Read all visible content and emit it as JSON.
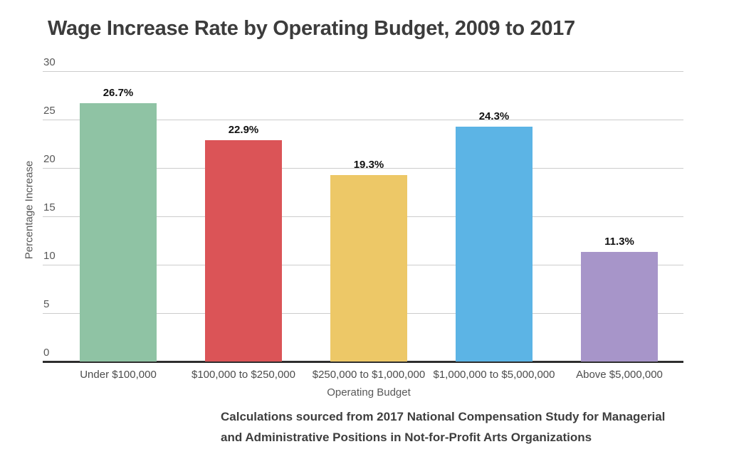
{
  "chart": {
    "title": "Wage Increase Rate by Operating Budget, 2009 to 2017",
    "y_axis": {
      "label": "Percentage Increase"
    },
    "x_axis": {
      "label": "Operating Budget"
    },
    "footer": {
      "line1": "Calculations sourced from 2017 National Compensation Study for Managerial",
      "line2": "and Administrative  Positions in Not-for-Profit Arts Organizations"
    }
  },
  "chart_data": {
    "type": "bar",
    "title": "Wage Increase Rate by Operating Budget, 2009 to 2017",
    "categories": [
      "Under $100,000",
      "$100,000 to $250,000",
      "$250,000 to $1,000,000",
      "$1,000,000 to $5,000,000",
      "Above $5,000,000"
    ],
    "values": [
      26.7,
      22.9,
      19.3,
      24.3,
      11.3
    ],
    "value_labels": [
      "26.7%",
      "22.9%",
      "19.3%",
      "24.3%",
      "11.3%"
    ],
    "bar_colors": [
      "#8fc3a4",
      "#db5457",
      "#edc867",
      "#5cb4e5",
      "#a795c9"
    ],
    "xlabel": "Operating Budget",
    "ylabel": "Percentage Increase",
    "ylim": [
      0,
      30
    ],
    "y_ticks": [
      0,
      5,
      10,
      15,
      20,
      25,
      30
    ],
    "grid": true,
    "legend": false,
    "source_note": "Calculations sourced from 2017 National Compensation Study for Managerial and Administrative  Positions in Not-for-Profit Arts Organizations"
  },
  "colors": {
    "background": "#ffffff",
    "title_text": "#3c3c3c",
    "axis_text": "#585858",
    "gridline": "#cccccc",
    "baseline": "#2e2e2e",
    "value_label_text": "#111111"
  }
}
